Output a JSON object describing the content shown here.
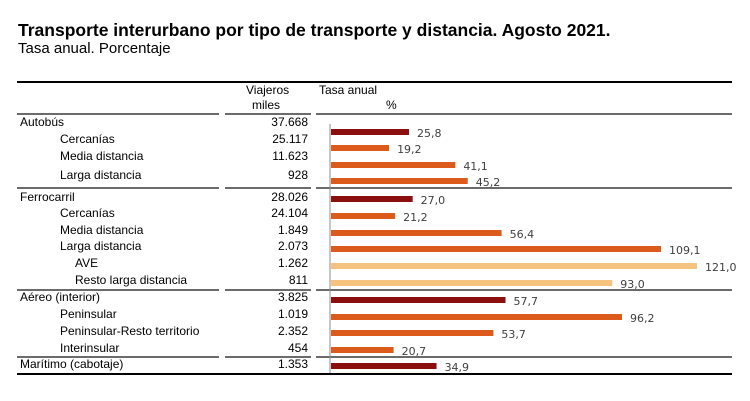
{
  "header": {
    "title": "Transporte interurbano por tipo de transporte y distancia. Agosto 2021.",
    "subtitle": "Tasa anual. Porcentaje"
  },
  "table": {
    "col_viajeros_line1": "Viajeros",
    "col_viajeros_line2": "miles",
    "col_tasa_line1": "Tasa anual",
    "col_tasa_line2": "%"
  },
  "colors": {
    "total": "#8b0f0f",
    "sub": "#dc5a1b",
    "subsub": "#f6c27f",
    "axis": "#8c8c8c"
  },
  "chart_data": {
    "type": "bar",
    "orientation": "horizontal",
    "title": "Transporte interurbano por tipo de transporte y distancia. Agosto 2021.",
    "subtitle": "Tasa anual. Porcentaje",
    "xlabel": "Tasa anual %",
    "ylabel": "",
    "xlim": [
      0,
      121
    ],
    "grid": false,
    "legend": "none",
    "rows": [
      {
        "label": "Autobús",
        "level": 0,
        "viajeros": "37.668",
        "tasa": 25.8,
        "tasa_label": "25,8"
      },
      {
        "label": "Cercanías",
        "level": 1,
        "viajeros": "25.117",
        "tasa": 19.2,
        "tasa_label": "19,2"
      },
      {
        "label": "Media distancia",
        "level": 1,
        "viajeros": "11.623",
        "tasa": 41.1,
        "tasa_label": "41,1"
      },
      {
        "label": "Larga distancia",
        "level": 1,
        "viajeros": "928",
        "tasa": 45.2,
        "tasa_label": "45,2"
      },
      {
        "label": "Ferrocarril",
        "level": 0,
        "viajeros": "28.026",
        "tasa": 27.0,
        "tasa_label": "27,0"
      },
      {
        "label": "Cercanías",
        "level": 1,
        "viajeros": "24.104",
        "tasa": 21.2,
        "tasa_label": "21,2"
      },
      {
        "label": "Media distancia",
        "level": 1,
        "viajeros": "1.849",
        "tasa": 56.4,
        "tasa_label": "56,4"
      },
      {
        "label": "Larga distancia",
        "level": 1,
        "viajeros": "2.073",
        "tasa": 109.1,
        "tasa_label": "109,1"
      },
      {
        "label": "AVE",
        "level": 2,
        "viajeros": "1.262",
        "tasa": 121.0,
        "tasa_label": "121,0"
      },
      {
        "label": "Resto larga distancia",
        "level": 2,
        "viajeros": "811",
        "tasa": 93.0,
        "tasa_label": "93,0"
      },
      {
        "label": "Aéreo (interior)",
        "level": 0,
        "viajeros": "3.825",
        "tasa": 57.7,
        "tasa_label": "57,7"
      },
      {
        "label": "Peninsular",
        "level": 1,
        "viajeros": "1.019",
        "tasa": 96.2,
        "tasa_label": "96,2"
      },
      {
        "label": "Peninsular-Resto territorio",
        "level": 1,
        "viajeros": "2.352",
        "tasa": 53.7,
        "tasa_label": "53,7"
      },
      {
        "label": "Interinsular",
        "level": 1,
        "viajeros": "454",
        "tasa": 20.7,
        "tasa_label": "20,7"
      },
      {
        "label": "Marítimo (cabotaje)",
        "level": 0,
        "viajeros": "1.353",
        "tasa": 34.9,
        "tasa_label": "34,9"
      }
    ]
  }
}
